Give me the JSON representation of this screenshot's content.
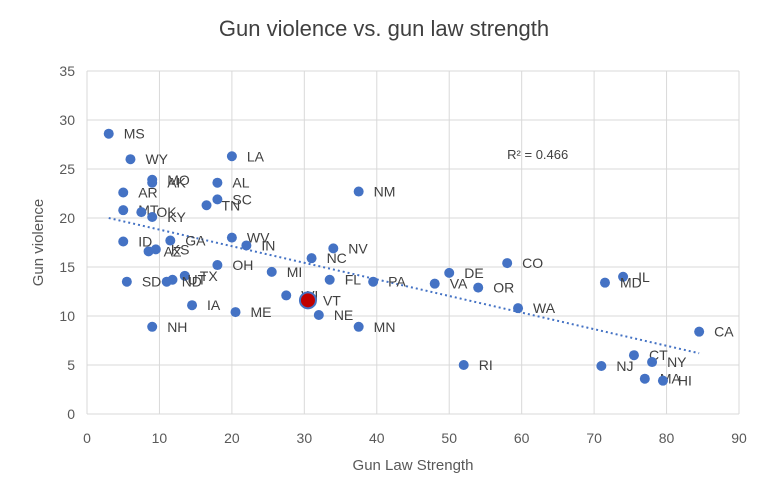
{
  "chart_data": {
    "type": "scatter",
    "title": "Gun violence vs. gun law strength",
    "xlabel": "Gun Law Strength",
    "ylabel": "Gun violence",
    "xlim": [
      0,
      90
    ],
    "ylim": [
      0,
      35
    ],
    "xticks": [
      0,
      10,
      20,
      30,
      40,
      50,
      60,
      70,
      80,
      90
    ],
    "yticks": [
      0,
      5,
      10,
      15,
      20,
      25,
      30,
      35
    ],
    "grid": true,
    "legend": "none",
    "colors": {
      "point": "#4472C4",
      "highlight": "#C00000",
      "trendline": "#4472C4"
    },
    "annotation": "R² = 0.466",
    "annotation_pos": {
      "x": 58,
      "y": 26
    },
    "trendline": {
      "x": [
        3,
        84.5
      ],
      "y": [
        20.0,
        6.2
      ]
    },
    "points": [
      {
        "label": "MS",
        "x": 3,
        "y": 28.6
      },
      {
        "label": "WY",
        "x": 6,
        "y": 26.0
      },
      {
        "label": "LA",
        "x": 20,
        "y": 26.3
      },
      {
        "label": "MO",
        "x": 9,
        "y": 23.9
      },
      {
        "label": "AK",
        "x": 9,
        "y": 23.6
      },
      {
        "label": "AL",
        "x": 18,
        "y": 23.6
      },
      {
        "label": "AR",
        "x": 5,
        "y": 22.6
      },
      {
        "label": "SC",
        "x": 18,
        "y": 21.9
      },
      {
        "label": "TN",
        "x": 16.5,
        "y": 21.3
      },
      {
        "label": "MT",
        "x": 5,
        "y": 20.8
      },
      {
        "label": "OK",
        "x": 7.5,
        "y": 20.6
      },
      {
        "label": "KY",
        "x": 9,
        "y": 20.1
      },
      {
        "label": "NM",
        "x": 37.5,
        "y": 22.7
      },
      {
        "label": "WV",
        "x": 20,
        "y": 18.0
      },
      {
        "label": "ID",
        "x": 5,
        "y": 17.6
      },
      {
        "label": "GA",
        "x": 11.5,
        "y": 17.7
      },
      {
        "label": "IN",
        "x": 22,
        "y": 17.2
      },
      {
        "label": "NV",
        "x": 34,
        "y": 16.9
      },
      {
        "label": "KS",
        "x": 9.5,
        "y": 16.8
      },
      {
        "label": "AZ",
        "x": 8.5,
        "y": 16.6
      },
      {
        "label": "NC",
        "x": 31,
        "y": 15.9
      },
      {
        "label": "CO",
        "x": 58,
        "y": 15.4
      },
      {
        "label": "OH",
        "x": 18,
        "y": 15.2
      },
      {
        "label": "MI",
        "x": 25.5,
        "y": 14.5
      },
      {
        "label": "DE",
        "x": 50,
        "y": 14.4
      },
      {
        "label": "IL",
        "x": 74,
        "y": 14.0
      },
      {
        "label": "TX",
        "x": 13.5,
        "y": 14.1
      },
      {
        "label": "UT",
        "x": 11.8,
        "y": 13.7
      },
      {
        "label": "ND",
        "x": 11,
        "y": 13.5
      },
      {
        "label": "SD",
        "x": 5.5,
        "y": 13.5
      },
      {
        "label": "FL",
        "x": 33.5,
        "y": 13.7
      },
      {
        "label": "PA",
        "x": 39.5,
        "y": 13.5
      },
      {
        "label": "MD",
        "x": 71.5,
        "y": 13.4
      },
      {
        "label": "VA",
        "x": 48,
        "y": 13.3
      },
      {
        "label": "OR",
        "x": 54,
        "y": 12.9
      },
      {
        "label": "WI",
        "x": 27.5,
        "y": 12.1
      },
      {
        "label": "VT",
        "x": 30.5,
        "y": 11.6,
        "highlight": true
      },
      {
        "label": "IA",
        "x": 14.5,
        "y": 11.1
      },
      {
        "label": "WA",
        "x": 59.5,
        "y": 10.8
      },
      {
        "label": "ME",
        "x": 20.5,
        "y": 10.4
      },
      {
        "label": "NE",
        "x": 32,
        "y": 10.1
      },
      {
        "label": "NH",
        "x": 9,
        "y": 8.9
      },
      {
        "label": "MN",
        "x": 37.5,
        "y": 8.9
      },
      {
        "label": "CA",
        "x": 84.5,
        "y": 8.4
      },
      {
        "label": "CT",
        "x": 75.5,
        "y": 6.0
      },
      {
        "label": "NY",
        "x": 78,
        "y": 5.3
      },
      {
        "label": "RI",
        "x": 52,
        "y": 5.0
      },
      {
        "label": "NJ",
        "x": 71,
        "y": 4.9
      },
      {
        "label": "MA",
        "x": 77,
        "y": 3.6
      },
      {
        "label": "HI",
        "x": 79.5,
        "y": 3.4
      }
    ]
  }
}
